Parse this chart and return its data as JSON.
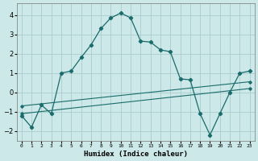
{
  "xlabel": "Humidex (Indice chaleur)",
  "bg_color": "#cce8e8",
  "grid_color": "#aacccc",
  "line_color": "#1a6b6b",
  "xlim": [
    -0.5,
    23.5
  ],
  "ylim": [
    -2.5,
    4.6
  ],
  "yticks": [
    -2,
    -1,
    0,
    1,
    2,
    3,
    4
  ],
  "xticks": [
    0,
    1,
    2,
    3,
    4,
    5,
    6,
    7,
    8,
    9,
    10,
    11,
    12,
    13,
    14,
    15,
    16,
    17,
    18,
    19,
    20,
    21,
    22,
    23
  ],
  "series1_x": [
    0,
    1,
    2,
    3,
    4,
    5,
    6,
    7,
    8,
    9,
    10,
    11,
    12,
    13,
    14,
    15,
    16,
    17,
    18,
    19,
    20,
    21,
    22,
    23
  ],
  "series1_y": [
    -1.2,
    -1.8,
    -0.65,
    -1.1,
    1.0,
    1.1,
    1.8,
    2.45,
    3.3,
    3.85,
    4.1,
    3.85,
    2.65,
    2.6,
    2.2,
    2.1,
    0.7,
    0.65,
    -1.1,
    -2.2,
    -1.1,
    0.0,
    1.0,
    1.1
  ],
  "trend1_x0": 0,
  "trend1_y0": -0.7,
  "trend1_x1": 23,
  "trend1_y1": 0.55,
  "trend2_x0": 0,
  "trend2_y0": -1.1,
  "trend2_x1": 23,
  "trend2_y1": 0.2
}
